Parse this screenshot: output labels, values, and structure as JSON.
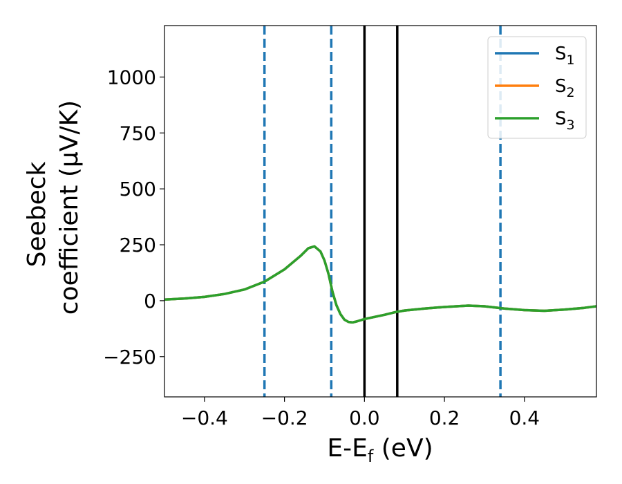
{
  "chart_data": {
    "type": "line",
    "xlabel": {
      "base": "E-E",
      "sub": "f",
      "tail": " (eV)"
    },
    "ylabel": {
      "line1": "Seebeck",
      "line2": "coefficient  (μV/K)"
    },
    "xlim": [
      -0.5,
      0.58
    ],
    "ylim": [
      -430,
      1230
    ],
    "xticks": [
      -0.4,
      -0.2,
      0.0,
      0.2,
      0.4
    ],
    "xtick_labels": [
      "−0.4",
      "−0.2",
      "0.0",
      "0.2",
      "0.4"
    ],
    "yticks": [
      -250,
      0,
      250,
      500,
      750,
      1000
    ],
    "ytick_labels": [
      "−250",
      "0",
      "250",
      "500",
      "750",
      "1000"
    ],
    "grid": false,
    "legend_position": "top-right",
    "series": [
      {
        "name": "S",
        "sub": "1",
        "color": "#1f77b4",
        "x": [
          -0.5,
          -0.45,
          -0.4,
          -0.35,
          -0.3,
          -0.25,
          -0.2,
          -0.16,
          -0.14,
          -0.125,
          -0.11,
          -0.1,
          -0.09,
          -0.08,
          -0.07,
          -0.06,
          -0.05,
          -0.04,
          -0.03,
          -0.02,
          0.0,
          0.05,
          0.08,
          0.1,
          0.15,
          0.2,
          0.26,
          0.3,
          0.35,
          0.4,
          0.45,
          0.5,
          0.55,
          0.58
        ],
        "y": [
          5,
          10,
          17,
          30,
          50,
          85,
          140,
          200,
          235,
          243,
          220,
          180,
          120,
          40,
          -20,
          -60,
          -85,
          -95,
          -97,
          -93,
          -82,
          -63,
          -50,
          -44,
          -35,
          -28,
          -22,
          -25,
          -35,
          -42,
          -45,
          -40,
          -32,
          -25
        ]
      },
      {
        "name": "S",
        "sub": "2",
        "color": "#ff7f0e",
        "x": [
          -0.5,
          -0.45,
          -0.4,
          -0.35,
          -0.3,
          -0.25,
          -0.2,
          -0.16,
          -0.14,
          -0.125,
          -0.11,
          -0.1,
          -0.09,
          -0.08,
          -0.07,
          -0.06,
          -0.05,
          -0.04,
          -0.03,
          -0.02,
          0.0,
          0.05,
          0.08,
          0.1,
          0.15,
          0.2,
          0.26,
          0.3,
          0.35,
          0.4,
          0.45,
          0.5,
          0.55,
          0.58
        ],
        "y": [
          5,
          10,
          17,
          30,
          50,
          85,
          140,
          200,
          235,
          243,
          220,
          180,
          120,
          40,
          -20,
          -60,
          -85,
          -95,
          -97,
          -93,
          -82,
          -63,
          -50,
          -44,
          -35,
          -28,
          -22,
          -25,
          -35,
          -42,
          -45,
          -40,
          -32,
          -25
        ]
      },
      {
        "name": "S",
        "sub": "3",
        "color": "#2ca02c",
        "x": [
          -0.5,
          -0.45,
          -0.4,
          -0.35,
          -0.3,
          -0.25,
          -0.2,
          -0.16,
          -0.14,
          -0.125,
          -0.11,
          -0.1,
          -0.09,
          -0.08,
          -0.07,
          -0.06,
          -0.05,
          -0.04,
          -0.03,
          -0.02,
          0.0,
          0.05,
          0.08,
          0.1,
          0.15,
          0.2,
          0.26,
          0.3,
          0.35,
          0.4,
          0.45,
          0.5,
          0.55,
          0.58
        ],
        "y": [
          5,
          10,
          17,
          30,
          50,
          85,
          140,
          200,
          235,
          243,
          220,
          180,
          120,
          40,
          -20,
          -60,
          -85,
          -95,
          -97,
          -93,
          -82,
          -63,
          -50,
          -44,
          -35,
          -28,
          -22,
          -25,
          -35,
          -42,
          -45,
          -40,
          -32,
          -25
        ]
      }
    ],
    "vlines": [
      {
        "x": -0.25,
        "style": "dashed",
        "color": "#1f77b4"
      },
      {
        "x": -0.083,
        "style": "dashed",
        "color": "#1f77b4"
      },
      {
        "x": 0.0,
        "style": "solid",
        "color": "#000000"
      },
      {
        "x": 0.082,
        "style": "solid",
        "color": "#000000"
      },
      {
        "x": 0.34,
        "style": "dashed",
        "color": "#1f77b4"
      }
    ]
  }
}
